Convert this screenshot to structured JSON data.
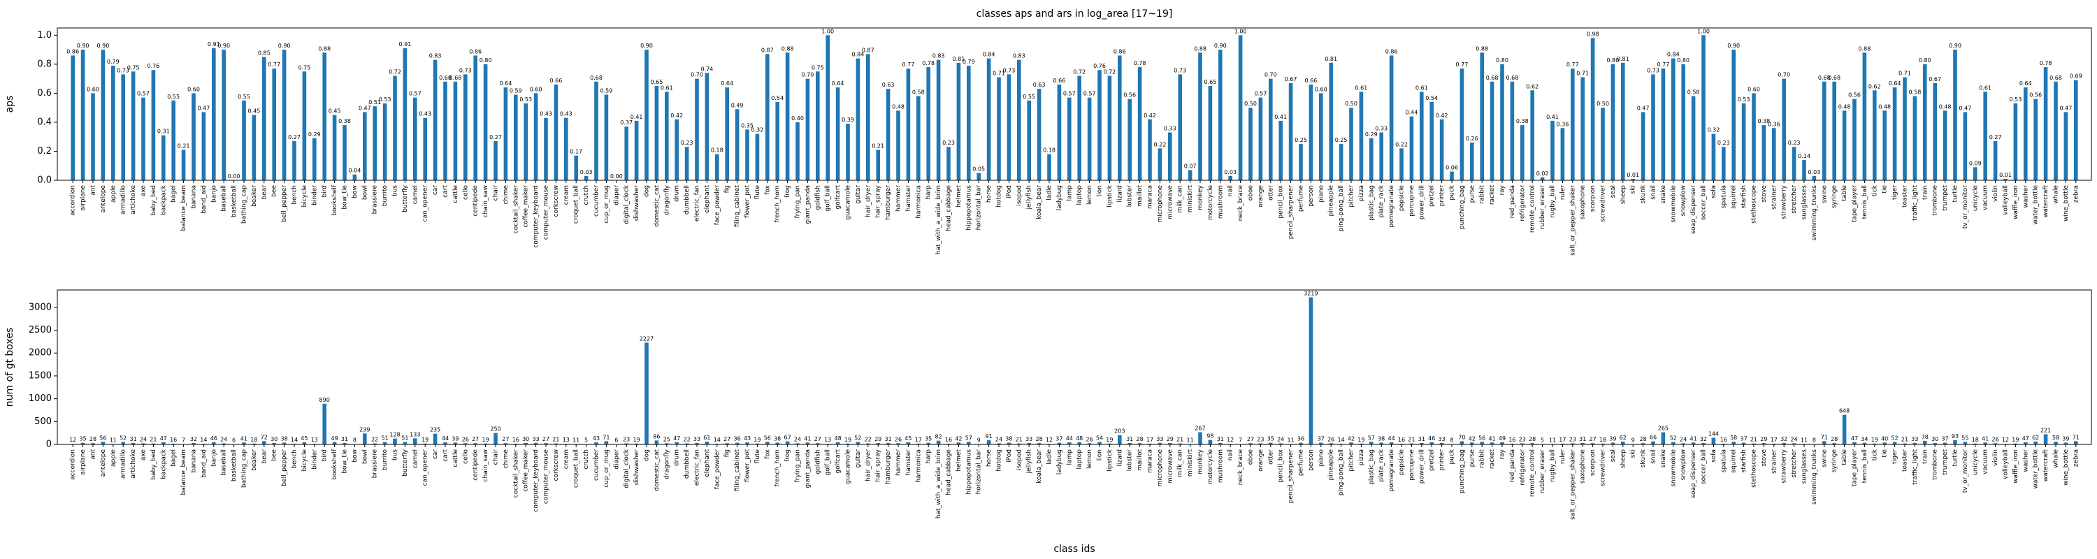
{
  "chart_data": [
    {
      "type": "bar",
      "title": "classes aps and ars in log_area [17~19]",
      "ylabel": "aps",
      "color": "#1f77b4",
      "categories": [
        "accordion",
        "airplane",
        "ant",
        "antelope",
        "apple",
        "armadillo",
        "artichoke",
        "axe",
        "baby_bed",
        "backpack",
        "bagel",
        "balance_beam",
        "banana",
        "band_aid",
        "banjo",
        "baseball",
        "basketball",
        "bathing_cap",
        "beaker",
        "bear",
        "bee",
        "bell_pepper",
        "bench",
        "bicycle",
        "binder",
        "bird",
        "bookshelf",
        "bow_tie",
        "bow",
        "bowl",
        "brassiere",
        "burrito",
        "bus",
        "butterfly",
        "camel",
        "can_opener",
        "car",
        "cart",
        "cattle",
        "cello",
        "centipede",
        "chain_saw",
        "chair",
        "chime",
        "cocktail_shaker",
        "coffee_maker",
        "computer_keyboard",
        "computer_mouse",
        "corkscrew",
        "cream",
        "croquet_ball",
        "crutch",
        "cucumber",
        "cup_or_mug",
        "diaper",
        "digital_clock",
        "dishwasher",
        "dog",
        "domestic_cat",
        "dragonfly",
        "drum",
        "dumbbell",
        "electric_fan",
        "elephant",
        "face_powder",
        "fig",
        "filing_cabinet",
        "flower_pot",
        "flute",
        "fox",
        "french_horn",
        "frog",
        "frying_pan",
        "giant_panda",
        "goldfish",
        "golf_ball",
        "golfcart",
        "guacamole",
        "guitar",
        "hair_dryer",
        "hair_spray",
        "hamburger",
        "hammer",
        "hamster",
        "harmonica",
        "harp",
        "hat_with_a_wide_brim",
        "head_cabbage",
        "helmet",
        "hippopotamus",
        "horizontal_bar",
        "horse",
        "hotdog",
        "iPod",
        "isopod",
        "jellyfish",
        "koala_bear",
        "ladle",
        "ladybug",
        "lamp",
        "laptop",
        "lemon",
        "lion",
        "lipstick",
        "lizard",
        "lobster",
        "maillot",
        "maraca",
        "microphone",
        "microwave",
        "milk_can",
        "miniskirt",
        "monkey",
        "motorcycle",
        "mushroom",
        "nail",
        "neck_brace",
        "oboe",
        "orange",
        "otter",
        "pencil_box",
        "pencil_sharpener",
        "perfume",
        "person",
        "piano",
        "pineapple",
        "ping-pong_ball",
        "pitcher",
        "pizza",
        "plastic_bag",
        "plate_rack",
        "pomegranate",
        "popsicle",
        "porcupine",
        "power_drill",
        "pretzel",
        "printer",
        "puck",
        "punching_bag",
        "purse",
        "rabbit",
        "racket",
        "ray",
        "red_panda",
        "refrigerator",
        "remote_control",
        "rubber_eraser",
        "rugby_ball",
        "ruler",
        "salt_or_pepper_shaker",
        "saxophone",
        "scorpion",
        "screwdriver",
        "seal",
        "sheep",
        "ski",
        "skunk",
        "snail",
        "snake",
        "snowmobile",
        "snowplow",
        "soap_dispenser",
        "soccer_ball",
        "sofa",
        "spatula",
        "squirrel",
        "starfish",
        "stethoscope",
        "stove",
        "strainer",
        "strawberry",
        "stretcher",
        "sunglasses",
        "swimming_trunks",
        "swine",
        "syringe",
        "table",
        "tape_player",
        "tennis_ball",
        "tick",
        "tie",
        "tiger",
        "toaster",
        "traffic_light",
        "train",
        "trombone",
        "trumpet",
        "turtle",
        "tv_or_monitor",
        "unicycle",
        "vacuum",
        "violin",
        "volleyball",
        "waffle_iron",
        "washer",
        "water_bottle",
        "watercraft",
        "whale",
        "wine_bottle",
        "zebra"
      ],
      "values": [
        0.86,
        0.9,
        0.6,
        0.9,
        0.79,
        0.73,
        0.75,
        0.57,
        0.76,
        0.31,
        0.55,
        0.21,
        0.6,
        0.47,
        0.91,
        0.9,
        0,
        0.55,
        0.45,
        0.85,
        0.77,
        0.9,
        0.27,
        0.75,
        0.29,
        0.88,
        0.45,
        0.38,
        0.04,
        0.47,
        0.51,
        0.53,
        0.72,
        0.91,
        0.57,
        0.43,
        0.83,
        0.68,
        0.68,
        0.73,
        0.86,
        0.8,
        0.27,
        0.64,
        0.59,
        0.53,
        0.6,
        0.43,
        0.66,
        0.43,
        0.17,
        0.03,
        0.68,
        0.59,
        0,
        0.37,
        0.41,
        0.9,
        0.65,
        0.61,
        0.42,
        0.23,
        0.7,
        0.74,
        0.18,
        0.64,
        0.49,
        0.35,
        0.32,
        0.87,
        0.54,
        0.88,
        0.4,
        0.7,
        0.75,
        1,
        0.64,
        0.39,
        0.84,
        0.87,
        0.21,
        0.63,
        0.48,
        0.77,
        0.58,
        0.78,
        0.83,
        0.23,
        0.81,
        0.79,
        0.05,
        0.84,
        0.71,
        0.73,
        0.83,
        0.55,
        0.63,
        0.18,
        0.66,
        0.57,
        0.72,
        0.57,
        0.76,
        0.72,
        0.86,
        0.56,
        0.78,
        0.42,
        0.22,
        0.33,
        0.73,
        0.07,
        0.88,
        0.65,
        0.9,
        0.03,
        1,
        0.5,
        0.57,
        0.7,
        0.41,
        0.67,
        0.25,
        0.66,
        0.6,
        0.81,
        0.25,
        0.5,
        0.61,
        0.29,
        0.33,
        0.86,
        0.22,
        0.44,
        0.61,
        0.54,
        0.42,
        0.06,
        0.77,
        0.26,
        0.88,
        0.68,
        0.8,
        0.68,
        0.38,
        0.62,
        0.02,
        0.41,
        0.36,
        0.77,
        0.71,
        0.98,
        0.5,
        0.8,
        0.81,
        0.01,
        0.47,
        0.73,
        0.77,
        0.84,
        0.8,
        0.58,
        1,
        0.32,
        0.23,
        0.9,
        0.53,
        0.6,
        0.38,
        0.36,
        0.7,
        0.23,
        0.14,
        0.03,
        0.68,
        0.68,
        0.48,
        0.56,
        0.88,
        0.62,
        0.48,
        0.64,
        0.71,
        0.58,
        0.8,
        0.67,
        0.48,
        0.9,
        0.47,
        0.09,
        0.61,
        0.27,
        0.01,
        0.53,
        0.64,
        0.56,
        0.78,
        0.68,
        0.47,
        0.69
      ],
      "value_labels": [
        "0.86",
        "0.90",
        "0.60",
        "0.90",
        "0.79",
        "0.73",
        "0.75",
        "0.57",
        "0.76",
        "0.31",
        "0.55",
        "0.21",
        "0.60",
        "0.47",
        "0.91",
        "0.90",
        "0.00",
        "0.55",
        "0.45",
        "0.85",
        "0.77",
        "0.90",
        "0.27",
        "0.75",
        "0.29",
        "0.88",
        "0.45",
        "0.38",
        "0.04",
        "0.47",
        "0.51",
        "0.53",
        "0.72",
        "0.91",
        "0.57",
        "0.43",
        "0.83",
        "0.68",
        "0.68",
        "0.73",
        "0.86",
        "0.80",
        "0.27",
        "0.64",
        "0.59",
        "0.53",
        "0.60",
        "0.43",
        "0.66",
        "0.43",
        "0.17",
        "0.03",
        "0.68",
        "0.59",
        "0.00",
        "0.37",
        "0.41",
        "0.90",
        "0.65",
        "0.61",
        "0.42",
        "0.23",
        "0.70",
        "0.74",
        "0.18",
        "0.64",
        "0.49",
        "0.35",
        "0.32",
        "0.87",
        "0.54",
        "0.88",
        "0.40",
        "0.70",
        "0.75",
        "1.00",
        "0.64",
        "0.39",
        "0.84",
        "0.87",
        "0.21",
        "0.63",
        "0.48",
        "0.77",
        "0.58",
        "0.78",
        "0.83",
        "0.23",
        "0.81",
        "0.79",
        "0.05",
        "0.84",
        "0.71",
        "0.73",
        "0.83",
        "0.55",
        "0.63",
        "0.18",
        "0.66",
        "0.57",
        "0.72",
        "0.57",
        "0.76",
        "0.72",
        "0.86",
        "0.56",
        "0.78",
        "0.42",
        "0.22",
        "0.33",
        "0.73",
        "0.07",
        "0.88",
        "0.65",
        "0.90",
        "0.03",
        "1.00",
        "0.50",
        "0.57",
        "0.70",
        "0.41",
        "0.67",
        "0.25",
        "0.66",
        "0.60",
        "0.81",
        "0.25",
        "0.50",
        "0.61",
        "0.29",
        "0.33",
        "0.86",
        "0.22",
        "0.44",
        "0.61",
        "0.54",
        "0.42",
        "0.06",
        "0.77",
        "0.26",
        "0.88",
        "0.68",
        "0.80",
        "0.68",
        "0.38",
        "0.62",
        "0.02",
        "0.41",
        "0.36",
        "0.77",
        "0.71",
        "0.98",
        "0.50",
        "0.80",
        "0.81",
        "0.01",
        "0.47",
        "0.73",
        "0.77",
        "0.84",
        "0.80",
        "0.58",
        "1.00",
        "0.32",
        "0.23",
        "0.90",
        "0.53",
        "0.60",
        "0.38",
        "0.36",
        "0.70",
        "0.23",
        "0.14",
        "0.03",
        "0.68",
        "0.68",
        "0.48",
        "0.56",
        "0.88",
        "0.62",
        "0.48",
        "0.64",
        "0.71",
        "0.58",
        "0.80",
        "0.67",
        "0.48",
        "0.90",
        "0.47",
        "0.09",
        "0.61",
        "0.27",
        "0.01",
        "0.53",
        "0.64",
        "0.56",
        "0.78",
        "0.68",
        "0.47",
        "0.69"
      ],
      "ylim": [
        0,
        1.05
      ],
      "yticks": [
        {
          "value": 0,
          "label": "0.0"
        },
        0.2,
        0.4,
        0.6,
        0.8,
        {
          "value": 1,
          "label": "1.0"
        }
      ]
    },
    {
      "type": "bar",
      "xlabel": "class ids",
      "ylabel": "num of gt boxes",
      "color": "#1f77b4",
      "categories": [
        "accordion",
        "airplane",
        "ant",
        "antelope",
        "apple",
        "armadillo",
        "artichoke",
        "axe",
        "baby_bed",
        "backpack",
        "bagel",
        "balance_beam",
        "banana",
        "band_aid",
        "banjo",
        "baseball",
        "basketball",
        "bathing_cap",
        "beaker",
        "bear",
        "bee",
        "bell_pepper",
        "bench",
        "bicycle",
        "binder",
        "bird",
        "bookshelf",
        "bow_tie",
        "bow",
        "bowl",
        "brassiere",
        "burrito",
        "bus",
        "butterfly",
        "camel",
        "can_opener",
        "car",
        "cart",
        "cattle",
        "cello",
        "centipede",
        "chain_saw",
        "chair",
        "chime",
        "cocktail_shaker",
        "coffee_maker",
        "computer_keyboard",
        "computer_mouse",
        "corkscrew",
        "cream",
        "croquet_ball",
        "crutch",
        "cucumber",
        "cup_or_mug",
        "diaper",
        "digital_clock",
        "dishwasher",
        "dog",
        "domestic_cat",
        "dragonfly",
        "drum",
        "dumbbell",
        "electric_fan",
        "elephant",
        "face_powder",
        "fig",
        "filing_cabinet",
        "flower_pot",
        "flute",
        "fox",
        "french_horn",
        "frog",
        "frying_pan",
        "giant_panda",
        "goldfish",
        "golf_ball",
        "golfcart",
        "guacamole",
        "guitar",
        "hair_dryer",
        "hair_spray",
        "hamburger",
        "hammer",
        "hamster",
        "harmonica",
        "harp",
        "hat_with_a_wide_brim",
        "head_cabbage",
        "helmet",
        "hippopotamus",
        "horizontal_bar",
        "horse",
        "hotdog",
        "iPod",
        "isopod",
        "jellyfish",
        "koala_bear",
        "ladle",
        "ladybug",
        "lamp",
        "laptop",
        "lemon",
        "lion",
        "lipstick",
        "lizard",
        "lobster",
        "maillot",
        "maraca",
        "microphone",
        "microwave",
        "milk_can",
        "miniskirt",
        "monkey",
        "motorcycle",
        "mushroom",
        "nail",
        "neck_brace",
        "oboe",
        "orange",
        "otter",
        "pencil_box",
        "pencil_sharpener",
        "perfume",
        "person",
        "piano",
        "pineapple",
        "ping-pong_ball",
        "pitcher",
        "pizza",
        "plastic_bag",
        "plate_rack",
        "pomegranate",
        "popsicle",
        "porcupine",
        "power_drill",
        "pretzel",
        "printer",
        "puck",
        "punching_bag",
        "purse",
        "rabbit",
        "racket",
        "ray",
        "red_panda",
        "refrigerator",
        "remote_control",
        "rubber_eraser",
        "rugby_ball",
        "ruler",
        "salt_or_pepper_shaker",
        "saxophone",
        "scorpion",
        "screwdriver",
        "seal",
        "sheep",
        "ski",
        "skunk",
        "snail",
        "snake",
        "snowmobile",
        "snowplow",
        "soap_dispenser",
        "soccer_ball",
        "sofa",
        "spatula",
        "squirrel",
        "starfish",
        "stethoscope",
        "stove",
        "strainer",
        "strawberry",
        "stretcher",
        "sunglasses",
        "swimming_trunks",
        "swine",
        "syringe",
        "table",
        "tape_player",
        "tennis_ball",
        "tick",
        "tie",
        "tiger",
        "toaster",
        "traffic_light",
        "train",
        "trombone",
        "trumpet",
        "turtle",
        "tv_or_monitor",
        "unicycle",
        "vacuum",
        "violin",
        "volleyball",
        "waffle_iron",
        "washer",
        "water_bottle",
        "watercraft",
        "whale",
        "wine_bottle",
        "zebra"
      ],
      "values": [
        12,
        35,
        28,
        56,
        11,
        52,
        31,
        24,
        21,
        47,
        16,
        7,
        32,
        14,
        46,
        24,
        6,
        41,
        18,
        72,
        30,
        38,
        14,
        45,
        13,
        890,
        49,
        31,
        8,
        239,
        22,
        51,
        128,
        51,
        133,
        19,
        235,
        44,
        39,
        26,
        27,
        19,
        250,
        27,
        16,
        30,
        33,
        27,
        21,
        13,
        11,
        5,
        43,
        71,
        6,
        23,
        19,
        2227,
        86,
        25,
        47,
        22,
        33,
        61,
        14,
        27,
        36,
        43,
        19,
        56,
        38,
        67,
        24,
        41,
        27,
        13,
        48,
        19,
        52,
        22,
        29,
        31,
        26,
        45,
        17,
        35,
        82,
        16,
        42,
        57,
        9,
        91,
        24,
        38,
        21,
        33,
        28,
        12,
        37,
        44,
        48,
        26,
        54,
        19,
        203,
        31,
        28,
        17,
        33,
        29,
        21,
        11,
        267,
        98,
        31,
        12,
        7,
        27,
        23,
        35,
        24,
        11,
        36,
        3219,
        37,
        26,
        14,
        42,
        19,
        57,
        38,
        44,
        16,
        21,
        31,
        46,
        33,
        8,
        70,
        42,
        56,
        41,
        49,
        16,
        23,
        28,
        5,
        11,
        17,
        23,
        31,
        27,
        18,
        39,
        62,
        9,
        28,
        66,
        265,
        52,
        24,
        41,
        32,
        144,
        16,
        58,
        37,
        21,
        29,
        17,
        32,
        24,
        11,
        8,
        71,
        28,
        648,
        47,
        34,
        19,
        40,
        52,
        21,
        33,
        78,
        30,
        37,
        93,
        55,
        18,
        41,
        26,
        12,
        19,
        47,
        62,
        221,
        58,
        39,
        71
      ],
      "ylim": [
        0,
        3380
      ],
      "yticks": [
        0,
        500,
        1000,
        1500,
        2000,
        2500,
        3000
      ]
    }
  ]
}
